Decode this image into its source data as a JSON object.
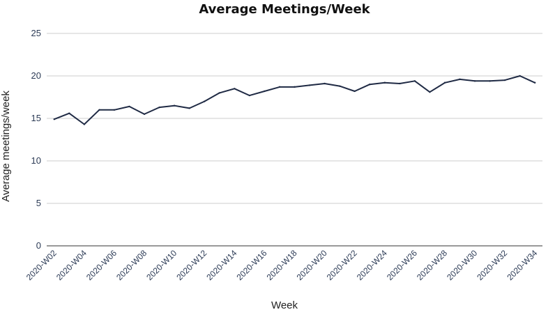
{
  "chart_data": {
    "type": "line",
    "title": "Average Meetings/Week",
    "xlabel": "Week",
    "ylabel": "Average meetings/week",
    "ylim": [
      0,
      25
    ],
    "yticks": [
      "0",
      "5",
      "10",
      "15",
      "20",
      "25"
    ],
    "x": [
      "2020-W02",
      "2020-W03",
      "2020-W04",
      "2020-W05",
      "2020-W06",
      "2020-W07",
      "2020-W08",
      "2020-W09",
      "2020-W10",
      "2020-W11",
      "2020-W12",
      "2020-W13",
      "2020-W14",
      "2020-W15",
      "2020-W16",
      "2020-W17",
      "2020-W18",
      "2020-W19",
      "2020-W20",
      "2020-W21",
      "2020-W22",
      "2020-W23",
      "2020-W24",
      "2020-W25",
      "2020-W26",
      "2020-W27",
      "2020-W28",
      "2020-W29",
      "2020-W30",
      "2020-W31",
      "2020-W32",
      "2020-W33",
      "2020-W34"
    ],
    "xtick_labels": [
      "2020-W02",
      "2020-W04",
      "2020-W06",
      "2020-W08",
      "2020-W10",
      "2020-W12",
      "2020-W14",
      "2020-W16",
      "2020-W18",
      "2020-W20",
      "2020-W22",
      "2020-W24",
      "2020-W26",
      "2020-W28",
      "2020-W30",
      "2020-W32",
      "2020-W34"
    ],
    "series": [
      {
        "values": [
          14.9,
          15.6,
          14.3,
          16.0,
          16.0,
          16.4,
          15.5,
          16.3,
          16.5,
          16.2,
          17.0,
          18.0,
          18.5,
          17.7,
          18.2,
          18.7,
          18.7,
          18.9,
          19.1,
          18.8,
          18.2,
          19.0,
          19.2,
          19.1,
          19.4,
          18.1,
          19.2,
          19.6,
          19.4,
          19.4,
          19.5,
          20.0,
          19.2
        ],
        "color": "#1f2a44"
      }
    ],
    "grid": true,
    "legend": "none"
  }
}
